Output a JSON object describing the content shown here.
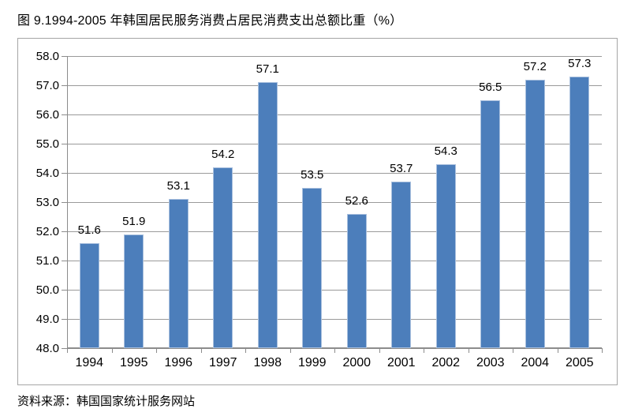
{
  "header": {
    "title": "图 9.1994-2005 年韩国居民服务消费占居民消费支出总额比重（%）"
  },
  "footer": {
    "source": "资料来源：韩国国家统计服务网站"
  },
  "chart_data": {
    "type": "bar",
    "title": "图 9.1994-2005 年韩国居民服务消费占居民消费支出总额比重（%）",
    "source": "资料来源：韩国国家统计服务网站",
    "categories": [
      "1994",
      "1995",
      "1996",
      "1997",
      "1998",
      "1999",
      "2000",
      "2001",
      "2002",
      "2003",
      "2004",
      "2005"
    ],
    "values": [
      51.6,
      51.9,
      53.1,
      54.2,
      57.1,
      53.5,
      52.6,
      53.7,
      54.3,
      56.5,
      57.2,
      57.3
    ],
    "value_labels": [
      "51.6",
      "51.9",
      "53.1",
      "54.2",
      "57.1",
      "53.5",
      "52.6",
      "53.7",
      "54.3",
      "56.5",
      "57.2",
      "57.3"
    ],
    "xlabel": "",
    "ylabel": "",
    "ylim": [
      48.0,
      58.0
    ],
    "ytick_step": 1.0,
    "ytick_labels": [
      "58.0",
      "57.0",
      "56.0",
      "55.0",
      "54.0",
      "53.0",
      "52.0",
      "51.0",
      "50.0",
      "49.0",
      "48.0"
    ],
    "grid": true,
    "legend": "none",
    "colors": {
      "bar_fill": "#4c7ebb",
      "bar_edge": "#a9c0de",
      "gridline": "#9a9a9a",
      "axis": "#8c8c8c",
      "frame_border": "#a6a6a6",
      "text": "#000000",
      "background": "#ffffff"
    }
  }
}
